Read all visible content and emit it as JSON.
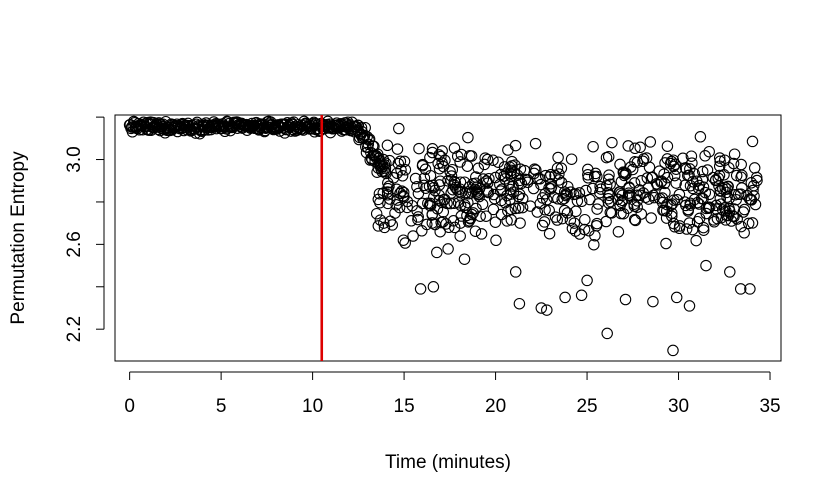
{
  "chart_data": {
    "type": "scatter",
    "xlabel": "Time (minutes)",
    "ylabel": "Permutation Entropy",
    "xlim": [
      -0.8,
      35.6
    ],
    "ylim": [
      2.05,
      3.21
    ],
    "x_ticks": [
      0,
      5,
      10,
      15,
      20,
      25,
      30,
      35
    ],
    "y_ticks": [
      2.2,
      2.6,
      3.0
    ],
    "y_tick_labels": [
      "2.2",
      "2.6",
      "3.0"
    ],
    "y_minor_ticks": [
      2.4,
      2.8,
      3.2
    ],
    "marker": "open-circle",
    "marker_color": "#000000",
    "vline": {
      "x": 10.5,
      "color": "#dd0000"
    },
    "phase_stable": {
      "x_start": 0.0,
      "x_end": 12.5,
      "y_mean": 3.155,
      "y_spread": 0.025
    },
    "phase_transition": {
      "x_start": 12.5,
      "x_end": 14.0,
      "y_from": 3.12,
      "y_to": 2.95
    },
    "phase_variable": {
      "x_start": 13.5,
      "x_end": 34.3,
      "y_center": 2.85,
      "y_min": 2.1,
      "y_max": 3.15
    },
    "outliers": [
      {
        "x": 15.9,
        "y": 2.39
      },
      {
        "x": 16.6,
        "y": 2.4
      },
      {
        "x": 21.3,
        "y": 2.32
      },
      {
        "x": 22.5,
        "y": 2.3
      },
      {
        "x": 22.8,
        "y": 2.29
      },
      {
        "x": 23.8,
        "y": 2.35
      },
      {
        "x": 24.7,
        "y": 2.36
      },
      {
        "x": 26.1,
        "y": 2.18
      },
      {
        "x": 27.1,
        "y": 2.34
      },
      {
        "x": 28.6,
        "y": 2.33
      },
      {
        "x": 29.7,
        "y": 2.1
      },
      {
        "x": 29.9,
        "y": 2.35
      },
      {
        "x": 30.6,
        "y": 2.31
      },
      {
        "x": 33.4,
        "y": 2.39
      },
      {
        "x": 33.9,
        "y": 2.39
      },
      {
        "x": 18.3,
        "y": 2.53
      },
      {
        "x": 21.1,
        "y": 2.47
      },
      {
        "x": 25.0,
        "y": 2.43
      },
      {
        "x": 31.5,
        "y": 2.5
      },
      {
        "x": 32.8,
        "y": 2.47
      }
    ]
  }
}
